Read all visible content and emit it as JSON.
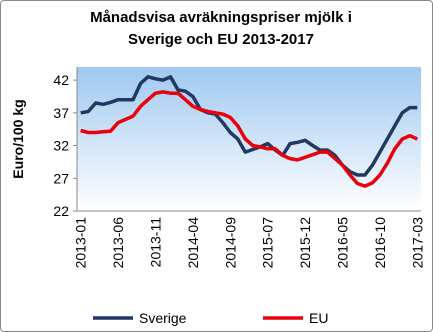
{
  "chart_data": {
    "type": "line",
    "title": "Månadsvisa avräkningspriser mjölk i Sverige och EU 2013-2017",
    "y_label": "Euro/100 kg",
    "categories": [
      "2013-01",
      null,
      null,
      null,
      null,
      "2013-06",
      null,
      null,
      null,
      null,
      "2013-11",
      null,
      null,
      null,
      null,
      "2014-04",
      null,
      null,
      null,
      null,
      "2014-09",
      null,
      null,
      null,
      null,
      "2015-07",
      null,
      null,
      null,
      null,
      "2015-12",
      null,
      null,
      null,
      null,
      "2016-05",
      null,
      null,
      null,
      null,
      "2016-10",
      null,
      null,
      null,
      null,
      "2017-03"
    ],
    "series": [
      {
        "name": "Sverige",
        "color": "#1f3864",
        "values": [
          37.0,
          37.2,
          38.5,
          38.3,
          38.6,
          39.0,
          39.0,
          39.0,
          41.5,
          42.5,
          42.2,
          42.0,
          42.5,
          40.5,
          40.3,
          39.5,
          37.5,
          37.0,
          36.8,
          35.5,
          34.0,
          33.0,
          31.0,
          31.4,
          31.8,
          32.3,
          31.3,
          30.5,
          32.3,
          32.5,
          32.8,
          32.0,
          31.3,
          31.3,
          30.5,
          29.0,
          28.0,
          27.5,
          27.5,
          29.0,
          31.0,
          33.0,
          35.0,
          37.0,
          37.8,
          37.8
        ]
      },
      {
        "name": "EU",
        "color": "#e8000b",
        "values": [
          34.3,
          34.0,
          34.0,
          34.1,
          34.2,
          35.5,
          36.0,
          36.5,
          38.0,
          39.0,
          40.0,
          40.2,
          40.0,
          40.0,
          39.0,
          38.0,
          37.5,
          37.2,
          37.0,
          36.8,
          36.3,
          35.0,
          33.0,
          32.0,
          31.8,
          31.5,
          31.5,
          30.5,
          30.0,
          29.8,
          30.2,
          30.6,
          31.0,
          31.0,
          30.0,
          29.0,
          27.5,
          26.2,
          25.8,
          26.3,
          27.5,
          29.3,
          31.5,
          33.0,
          33.5,
          33.0
        ]
      }
    ],
    "ylim": [
      22,
      44
    ],
    "yticks": [
      22,
      27,
      32,
      37,
      42
    ]
  }
}
